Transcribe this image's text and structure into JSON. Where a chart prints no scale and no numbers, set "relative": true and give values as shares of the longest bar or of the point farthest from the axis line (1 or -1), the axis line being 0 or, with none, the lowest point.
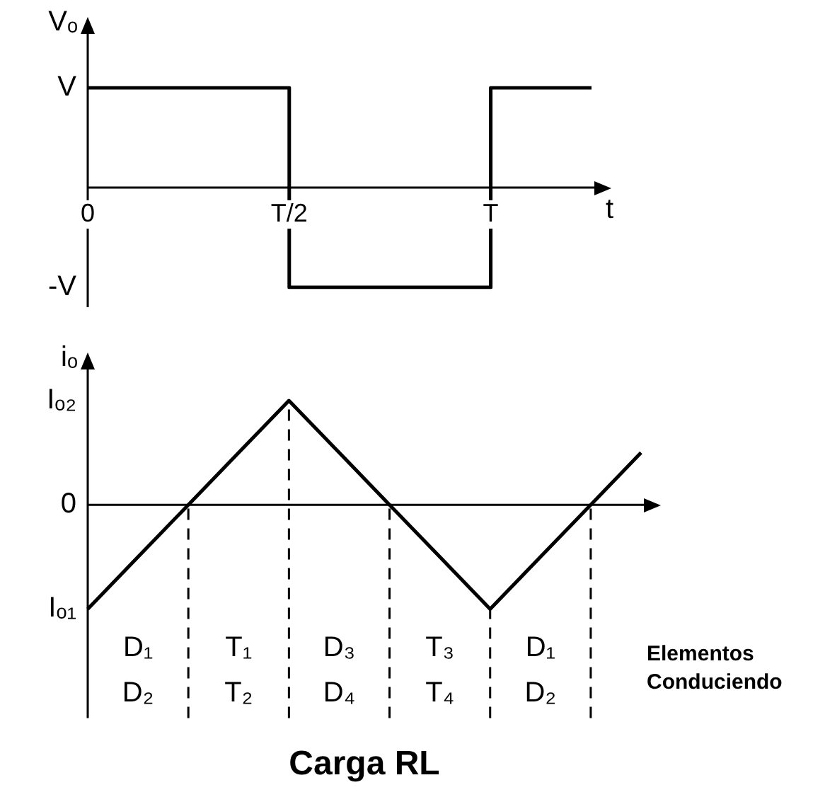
{
  "chart_data": [
    {
      "type": "step",
      "relative": true,
      "ylabel": "Vₒ",
      "xlabel": "t",
      "categories": [
        "0",
        null,
        "T/2",
        null,
        "T",
        null
      ],
      "values": [
        1,
        1,
        -1,
        -1,
        1,
        1
      ],
      "color": "#000000",
      "annotations": [
        "V",
        "-V"
      ]
    },
    {
      "type": "line",
      "relative": true,
      "ylabel": "iₒ",
      "title": "Carga RL",
      "grid": "x",
      "categories": [
        null,
        null,
        null,
        null,
        null,
        null,
        null,
        null,
        null,
        null,
        null,
        null
      ],
      "values": [
        -1,
        -0.5,
        0,
        0.5,
        1,
        0.5,
        0,
        -0.5,
        -1,
        -0.5,
        0,
        0.5
      ],
      "color": "#000000",
      "annotations": [
        "Iₒ₂",
        "0",
        "Iₒ₁",
        "D₁ D₂",
        "T₁ T₂",
        "D₃ D₄",
        "T₃ T₄",
        "D₁ D₂",
        "Elementos Conduciendo"
      ]
    }
  ]
}
